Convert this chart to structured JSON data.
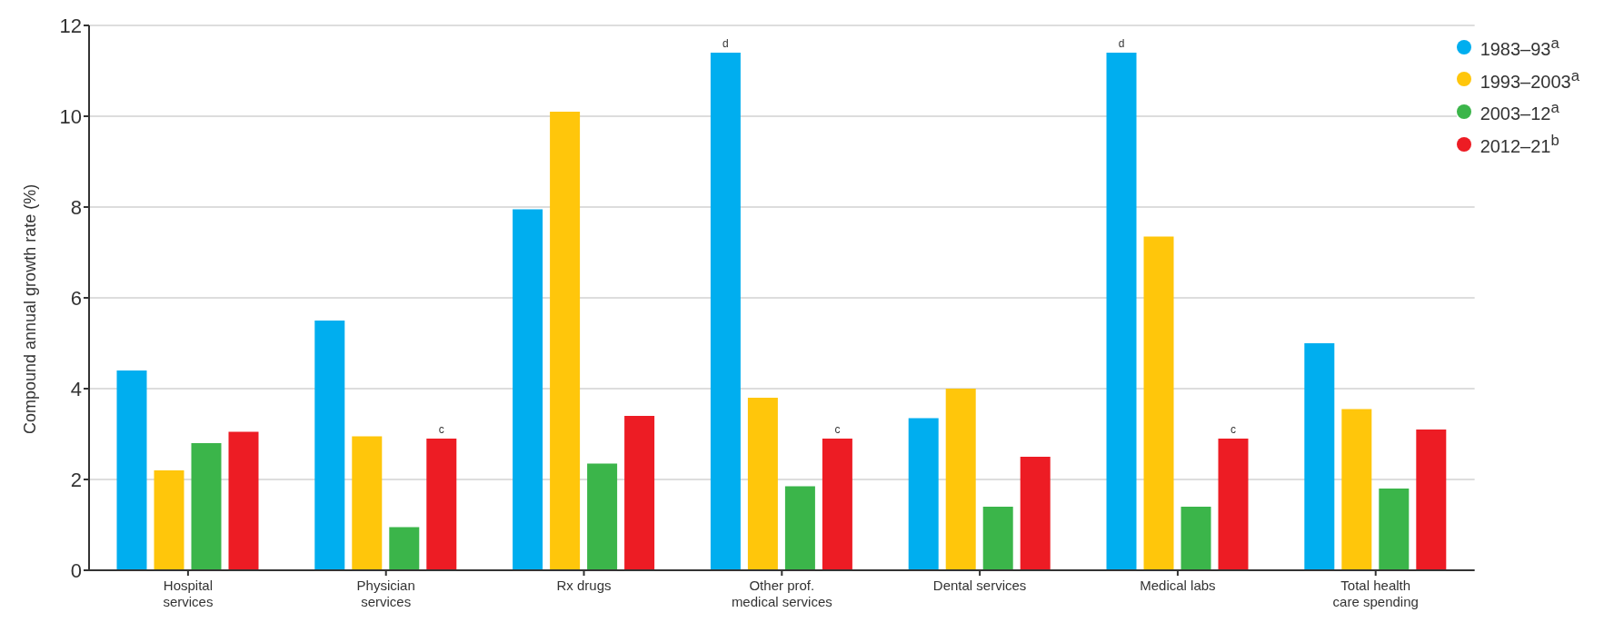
{
  "chart_data": {
    "type": "bar",
    "ylabel": "Compound annual growth rate (%)",
    "categories": [
      "Hospital services",
      "Physician services",
      "Rx drugs",
      "Other prof. medical services",
      "Dental services",
      "Medical labs",
      "Total health care spending"
    ],
    "series": [
      {
        "name": "1983–93$^{a}$",
        "color": "#00aeef",
        "values": [
          4.4,
          5.5,
          7.95,
          11.4,
          3.35,
          11.4,
          5.0
        ],
        "value_labels": [
          null,
          null,
          null,
          "d",
          null,
          "d",
          null
        ]
      },
      {
        "name": "1993–2003$^{a}$",
        "color": "#ffc60b",
        "values": [
          2.2,
          2.95,
          10.1,
          3.8,
          4.0,
          7.35,
          3.55
        ]
      },
      {
        "name": "2003–12$^{a}$",
        "color": "#3bb54a",
        "values": [
          2.8,
          0.95,
          2.35,
          1.85,
          1.4,
          1.4,
          1.8
        ]
      },
      {
        "name": "2012–21$^{b}$",
        "color": "#ed1c24",
        "values": [
          3.05,
          2.9,
          3.4,
          2.9,
          2.5,
          2.9,
          3.1
        ],
        "value_labels": [
          null,
          "c",
          null,
          "c",
          null,
          "c",
          null
        ]
      }
    ],
    "ylim": [
      0,
      12
    ],
    "yticks": [
      0,
      2,
      4,
      6,
      8,
      10,
      12
    ],
    "grid": "y",
    "legend": "top right"
  }
}
